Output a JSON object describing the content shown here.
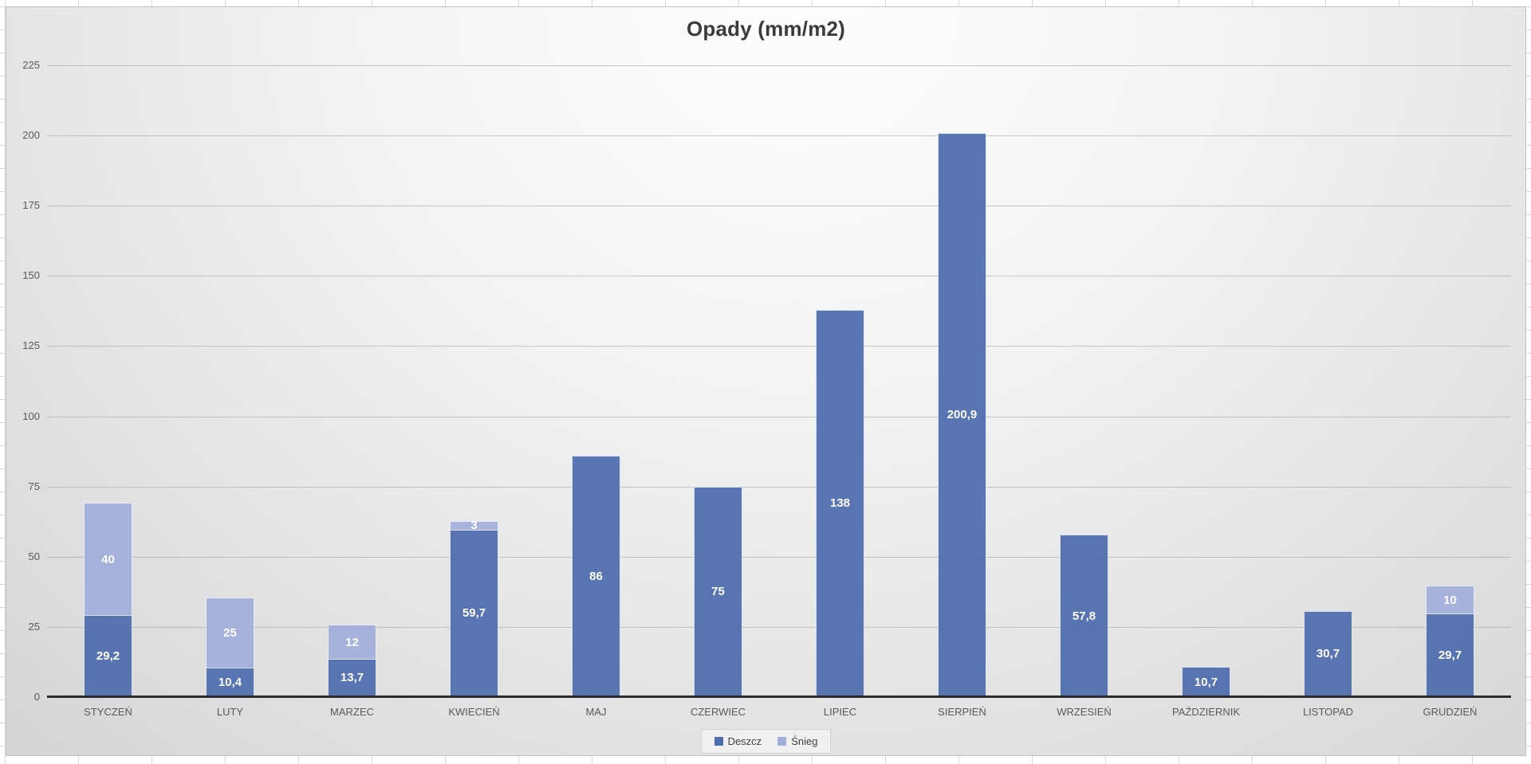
{
  "chart_data": {
    "type": "bar",
    "stacked": true,
    "title": "Opady (mm/m2)",
    "categories": [
      "STYCZEŃ",
      "LUTY",
      "MARZEC",
      "KWIECIEŃ",
      "MAJ",
      "CZERWIEC",
      "LIPIEC",
      "SIERPIEŃ",
      "WRZESIEŃ",
      "PAŹDZIERNIK",
      "LISTOPAD",
      "GRUDZIEŃ"
    ],
    "series": [
      {
        "name": "Deszcz",
        "color": "#4e6dae",
        "values": [
          29.2,
          10.4,
          13.7,
          59.7,
          86,
          75,
          138,
          200.9,
          57.8,
          10.7,
          30.7,
          29.7
        ],
        "labels": [
          "29,2",
          "10,4",
          "13,7",
          "59,7",
          "86",
          "75",
          "138",
          "200,9",
          "57,8",
          "10,7",
          "30,7",
          "29,7"
        ]
      },
      {
        "name": "Śnieg",
        "color": "#a2afda",
        "values": [
          40,
          25,
          12,
          3,
          0,
          0,
          0,
          0,
          0,
          0,
          0,
          10
        ],
        "labels": [
          "40",
          "25",
          "12",
          "3",
          "",
          "",
          "",
          "",
          "",
          "",
          "",
          "10"
        ]
      }
    ],
    "ylim": [
      0,
      225
    ],
    "yticks": [
      0,
      25,
      50,
      75,
      100,
      125,
      150,
      175,
      200,
      225
    ],
    "grid": true,
    "legend_position": "bottom",
    "value_label_color": "#ffffff",
    "axis_label_color": "#595959"
  }
}
